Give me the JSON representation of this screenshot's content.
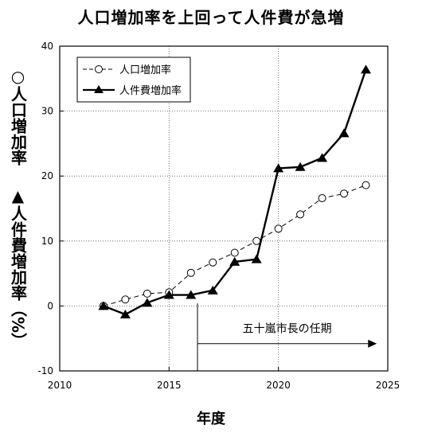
{
  "chart_data": {
    "type": "line",
    "title": "人口増加率を上回って人件費が急増",
    "ylabel_part1": "○人口増加率",
    "ylabel_part2": "▲人件費増加率",
    "ylabel_unit": "（%）",
    "xlabel": "年度",
    "xlim": [
      2010,
      2025
    ],
    "ylim": [
      -10,
      40
    ],
    "xticks": [
      2010,
      2015,
      2020,
      2025
    ],
    "yticks": [
      -10,
      0,
      10,
      20,
      30,
      40
    ],
    "grid": "dotted",
    "legend_position": "top-left",
    "series": [
      {
        "name": "人口増加率",
        "marker": "open-circle",
        "line_style": "dashed",
        "x": [
          2012,
          2013,
          2014,
          2015,
          2016,
          2017,
          2018,
          2019,
          2020,
          2021,
          2022,
          2023,
          2024
        ],
        "values": [
          0.0,
          1.0,
          1.9,
          2.1,
          5.1,
          6.7,
          8.2,
          10.0,
          11.9,
          14.1,
          16.6,
          17.3,
          18.6
        ]
      },
      {
        "name": "人件費増加率",
        "marker": "filled-triangle",
        "line_style": "solid",
        "x": [
          2012,
          2013,
          2014,
          2015,
          2016,
          2017,
          2018,
          2019,
          2020,
          2021,
          2022,
          2023,
          2024
        ],
        "values": [
          0.0,
          -1.3,
          0.5,
          1.7,
          1.7,
          2.4,
          6.8,
          7.2,
          21.2,
          21.4,
          22.8,
          26.6,
          36.4
        ]
      }
    ],
    "annotation": {
      "text": "五十嵐市長の任期",
      "start_x": 2016.3,
      "end_x": 2024.5,
      "marker_line_x": 2016.3,
      "y": -5.8
    }
  }
}
